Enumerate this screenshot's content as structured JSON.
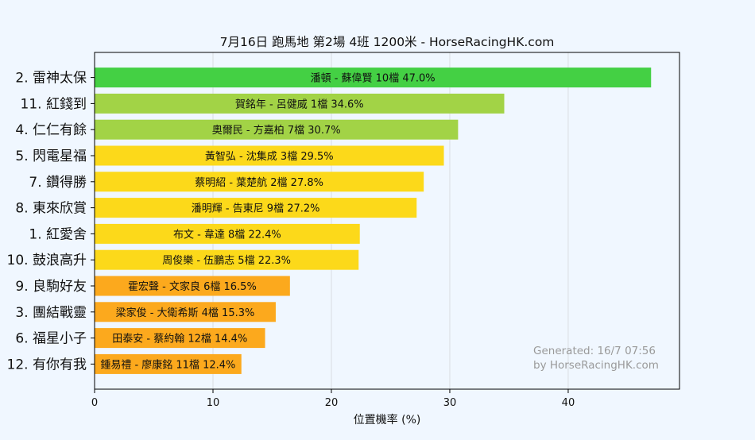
{
  "chart_data": {
    "type": "bar",
    "orientation": "horizontal",
    "title": "7月16日  跑馬地  第2場  4班  1200米 - HorseRacingHK.com",
    "xlabel": "位置機率 (%)",
    "ylabel": "",
    "xlim": [
      0,
      49.4
    ],
    "xticks": [
      0,
      10,
      20,
      30,
      40
    ],
    "grid": true,
    "categories": [
      "2. 雷神太保",
      "11. 紅錢到",
      "4. 仁仁有餘",
      "5. 閃電星福",
      "7. 鑽得勝",
      "8. 東來欣賞",
      "1. 紅愛舍",
      "10. 鼓浪高升",
      "9. 良駒好友",
      "3. 團結戰靈",
      "6. 福星小子",
      "12. 有你有我"
    ],
    "values": [
      47.0,
      34.6,
      30.7,
      29.5,
      27.8,
      27.2,
      22.4,
      22.3,
      16.5,
      15.3,
      14.4,
      12.4
    ],
    "bar_labels": [
      "潘頓 - 蘇偉賢 10檔  47.0%",
      "賀銘年 - 呂健威 1檔  34.6%",
      "奧爾民 - 方嘉柏 7檔  30.7%",
      "黃智弘 - 沈集成 3檔  29.5%",
      "蔡明紹 - 葉楚航 2檔  27.8%",
      "潘明輝 - 告東尼 9檔  27.2%",
      "布文 - 韋達 8檔  22.4%",
      "周俊樂 - 伍鵬志 5檔  22.3%",
      "霍宏聲 - 文家良 6檔  16.5%",
      "梁家俊 - 大衛希斯 4檔  15.3%",
      "田泰安 - 蔡約翰 12檔  14.4%",
      "鍾易禮 - 廖康銘 11檔  12.4%"
    ],
    "colors": [
      "#44d044",
      "#a2d346",
      "#a2d346",
      "#fcd91a",
      "#fcd91a",
      "#fcd91a",
      "#fcd91a",
      "#fcd91a",
      "#fca91d",
      "#fca91d",
      "#fca91d",
      "#fca91d"
    ]
  },
  "watermark": {
    "line1": "Generated: 16/7 07:56",
    "line2": "by HorseRacingHK.com"
  }
}
